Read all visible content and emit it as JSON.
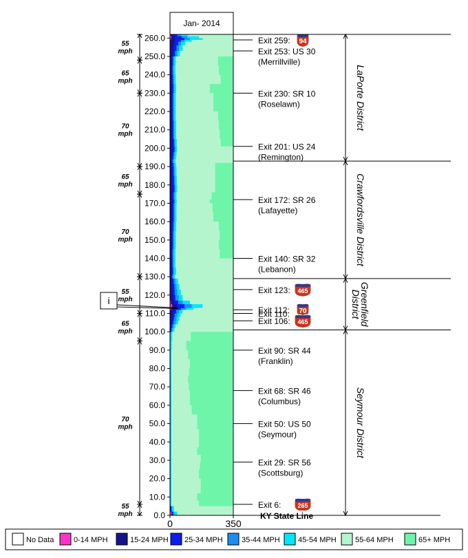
{
  "chart_data": {
    "type": "area",
    "title": "Jan- 2014",
    "x_axis": {
      "range": [
        0,
        350
      ],
      "tick_labels": [
        "0",
        "350"
      ]
    },
    "y_axis": {
      "range": [
        0,
        262
      ],
      "tick_labels": [
        "0.0",
        "10.0",
        "20.0",
        "30.0",
        "40.0",
        "50.0",
        "60.0",
        "70.0",
        "80.0",
        "90.0",
        "100.0",
        "110.0",
        "120.0",
        "130.0",
        "140.0",
        "150.0",
        "160.0",
        "170.0",
        "180.0",
        "190.0",
        "200.0",
        "210.0",
        "220.0",
        "230.0",
        "240.0",
        "250.0",
        "260.0"
      ]
    },
    "legend": {
      "placement": "bottom",
      "entries": [
        {
          "label": "No Data",
          "color": "#ffffff"
        },
        {
          "label": "0-14 MPH",
          "color": "#ff33cc"
        },
        {
          "label": "15-24 MPH",
          "color": "#14148c"
        },
        {
          "label": "25-34 MPH",
          "color": "#0a1ef0"
        },
        {
          "label": "35-44 MPH",
          "color": "#1e8cf0"
        },
        {
          "label": "45-54 MPH",
          "color": "#00e6ff"
        },
        {
          "label": "55-64 MPH",
          "color": "#b4f5cd"
        },
        {
          "label": "65+ MPH",
          "color": "#6ef5aa"
        }
      ]
    },
    "speed_limits": [
      {
        "label": "55\nmph",
        "from": 0,
        "to": 6
      },
      {
        "label": "70\nmph",
        "from": 6,
        "to": 95
      },
      {
        "label": "65\nmph",
        "from": 95,
        "to": 110
      },
      {
        "label": "55\nmph",
        "from": 110,
        "to": 130
      },
      {
        "label": "70\nmph",
        "from": 130,
        "to": 175
      },
      {
        "label": "65\nmph",
        "from": 175,
        "to": 190
      },
      {
        "label": "70\nmph",
        "from": 190,
        "to": 230
      },
      {
        "label": "65\nmph",
        "from": 230,
        "to": 248
      },
      {
        "label": "55\nmph",
        "from": 248,
        "to": 262
      }
    ],
    "exits": [
      {
        "mile": 259,
        "line1": "Exit 259:",
        "line2": "",
        "shield": "94",
        "shield_type": "interstate"
      },
      {
        "mile": 253,
        "line1": "Exit 253: US 30",
        "line2": "(Merrillville)",
        "shield": ""
      },
      {
        "mile": 230,
        "line1": "Exit 230: SR 10",
        "line2": "(Roselawn)",
        "shield": ""
      },
      {
        "mile": 201,
        "line1": "Exit 201: US 24",
        "line2": "(Remington)",
        "shield": ""
      },
      {
        "mile": 172,
        "line1": "Exit 172: SR 26",
        "line2": "(Lafayette)",
        "shield": ""
      },
      {
        "mile": 140,
        "line1": "Exit 140: SR 32",
        "line2": "(Lebanon)",
        "shield": ""
      },
      {
        "mile": 123,
        "line1": "Exit 123:",
        "line2": "",
        "shield": "465",
        "shield_type": "interstate"
      },
      {
        "mile": 112,
        "line1": "Exit 112:",
        "line2": "",
        "shield": "70",
        "shield_type": "interstate"
      },
      {
        "mile": 110,
        "line1": "Exit 110:",
        "line2": "",
        "shield": ""
      },
      {
        "mile": 106,
        "line1": "Exit 106:",
        "line2": "",
        "shield": "465",
        "shield_type": "interstate"
      },
      {
        "mile": 90,
        "line1": "Exit 90: SR 44",
        "line2": "(Franklin)",
        "shield": ""
      },
      {
        "mile": 68,
        "line1": "Exit 68: SR 46",
        "line2": "(Columbus)",
        "shield": ""
      },
      {
        "mile": 50,
        "line1": "Exit 50: US 50",
        "line2": "(Seymour)",
        "shield": ""
      },
      {
        "mile": 29,
        "line1": "Exit 29: SR 56",
        "line2": "(Scottsburg)",
        "shield": ""
      },
      {
        "mile": 6,
        "line1": "Exit 6:",
        "line2": "",
        "shield": "265",
        "shield_type": "interstate"
      },
      {
        "mile": 0,
        "line1": "KY State Line",
        "line2": "",
        "shield": "",
        "bold": true
      }
    ],
    "districts": [
      {
        "name": "LaPorte District",
        "from": 193,
        "to": 262
      },
      {
        "name": "Crawfordsville District",
        "from": 129,
        "to": 193
      },
      {
        "name": "Greenfield\nDistrict",
        "from": 101,
        "to": 129
      },
      {
        "name": "Seymour District",
        "from": 0,
        "to": 101
      }
    ],
    "callout": {
      "label": "i",
      "mile": 113
    },
    "speed_profile": {
      "miles": [
        0,
        2,
        5,
        8,
        12,
        15,
        20,
        25,
        29,
        33,
        37,
        42,
        47,
        50,
        55,
        60,
        65,
        68,
        72,
        76,
        80,
        85,
        90,
        95,
        100,
        102,
        104,
        106,
        108,
        110,
        112,
        113,
        115,
        117,
        120,
        123,
        126,
        129,
        131,
        135,
        140,
        145,
        150,
        155,
        160,
        165,
        170,
        172,
        176,
        180,
        185,
        190,
        192,
        194,
        196,
        198,
        201,
        205,
        210,
        215,
        220,
        225,
        230,
        235,
        240,
        245,
        250,
        253,
        256,
        258,
        259,
        260,
        261,
        262
      ],
      "class_upper_bounds_mph": {
        "0-14 MPH": [
          8,
          2,
          0,
          0,
          0,
          0,
          0,
          0,
          0,
          0,
          0,
          0,
          0,
          0,
          0,
          0,
          0,
          0,
          0,
          0,
          0,
          0,
          0,
          0,
          0,
          0,
          0,
          0,
          0,
          0,
          8,
          12,
          5,
          0,
          0,
          0,
          0,
          0,
          0,
          0,
          0,
          0,
          0,
          0,
          0,
          0,
          0,
          0,
          0,
          0,
          0,
          0,
          0,
          0,
          0,
          0,
          0,
          0,
          0,
          0,
          0,
          0,
          0,
          0,
          0,
          0,
          0,
          0,
          0,
          0,
          5,
          8,
          4,
          0
        ],
        "15-24 MPH": [
          12,
          5,
          0,
          0,
          0,
          0,
          0,
          0,
          0,
          0,
          0,
          0,
          0,
          0,
          0,
          0,
          0,
          0,
          0,
          0,
          0,
          0,
          0,
          0,
          5,
          6,
          10,
          12,
          15,
          20,
          30,
          38,
          25,
          18,
          14,
          12,
          10,
          6,
          10,
          8,
          8,
          10,
          10,
          10,
          12,
          12,
          14,
          12,
          14,
          12,
          12,
          10,
          8,
          10,
          12,
          14,
          14,
          12,
          12,
          10,
          10,
          10,
          12,
          10,
          8,
          10,
          16,
          20,
          24,
          28,
          30,
          25,
          20,
          0
        ],
        "25-34 MPH": [
          16,
          8,
          0,
          0,
          0,
          0,
          0,
          0,
          0,
          0,
          0,
          0,
          0,
          0,
          0,
          0,
          0,
          0,
          0,
          0,
          0,
          0,
          0,
          0,
          8,
          12,
          18,
          22,
          26,
          34,
          60,
          80,
          45,
          30,
          26,
          24,
          20,
          12,
          16,
          14,
          14,
          16,
          16,
          18,
          20,
          20,
          22,
          20,
          24,
          22,
          20,
          18,
          14,
          18,
          20,
          24,
          22,
          18,
          18,
          16,
          16,
          16,
          18,
          16,
          14,
          16,
          28,
          36,
          45,
          60,
          80,
          65,
          40,
          0
        ],
        "35-44 MPH": [
          24,
          12,
          3,
          3,
          3,
          3,
          3,
          3,
          3,
          3,
          3,
          3,
          3,
          3,
          3,
          3,
          3,
          3,
          3,
          3,
          3,
          3,
          3,
          4,
          14,
          20,
          30,
          36,
          40,
          50,
          90,
          120,
          70,
          48,
          40,
          36,
          30,
          18,
          22,
          20,
          20,
          22,
          22,
          24,
          26,
          26,
          28,
          26,
          30,
          28,
          26,
          24,
          20,
          24,
          26,
          30,
          28,
          24,
          24,
          22,
          22,
          22,
          24,
          22,
          20,
          22,
          40,
          50,
          60,
          80,
          110,
          95,
          60,
          0
        ],
        "45-54 MPH": [
          40,
          22,
          8,
          8,
          8,
          8,
          8,
          8,
          8,
          8,
          8,
          8,
          8,
          8,
          8,
          8,
          8,
          8,
          8,
          8,
          8,
          8,
          10,
          12,
          24,
          30,
          45,
          52,
          58,
          70,
          130,
          180,
          110,
          70,
          60,
          52,
          44,
          28,
          34,
          30,
          30,
          32,
          32,
          34,
          36,
          36,
          38,
          36,
          40,
          38,
          36,
          34,
          30,
          34,
          36,
          40,
          38,
          34,
          34,
          32,
          32,
          32,
          34,
          32,
          30,
          32,
          55,
          70,
          85,
          120,
          180,
          160,
          100,
          0
        ],
        "55-64 MPH": [
          350,
          350,
          160,
          150,
          170,
          170,
          160,
          165,
          170,
          150,
          160,
          160,
          150,
          150,
          120,
          110,
          110,
          105,
          100,
          105,
          110,
          100,
          90,
          115,
          350,
          350,
          350,
          350,
          350,
          350,
          350,
          350,
          350,
          350,
          350,
          350,
          350,
          350,
          350,
          350,
          275,
          270,
          275,
          270,
          240,
          235,
          220,
          230,
          250,
          250,
          250,
          250,
          350,
          350,
          350,
          350,
          280,
          275,
          270,
          265,
          240,
          240,
          220,
          280,
          270,
          265,
          350,
          350,
          350,
          350,
          350,
          350,
          350,
          350
        ],
        "65+ MPH": [
          350,
          350,
          350,
          350,
          350,
          350,
          350,
          350,
          350,
          350,
          350,
          350,
          350,
          350,
          350,
          350,
          350,
          350,
          350,
          350,
          350,
          350,
          350,
          350,
          350,
          350,
          350,
          350,
          350,
          350,
          350,
          350,
          350,
          350,
          350,
          350,
          350,
          350,
          350,
          350,
          350,
          350,
          350,
          350,
          350,
          350,
          350,
          350,
          350,
          350,
          350,
          350,
          350,
          350,
          350,
          350,
          350,
          350,
          350,
          350,
          350,
          350,
          350,
          350,
          350,
          350,
          350,
          350,
          350,
          350,
          350,
          350,
          350,
          350
        ]
      }
    }
  }
}
